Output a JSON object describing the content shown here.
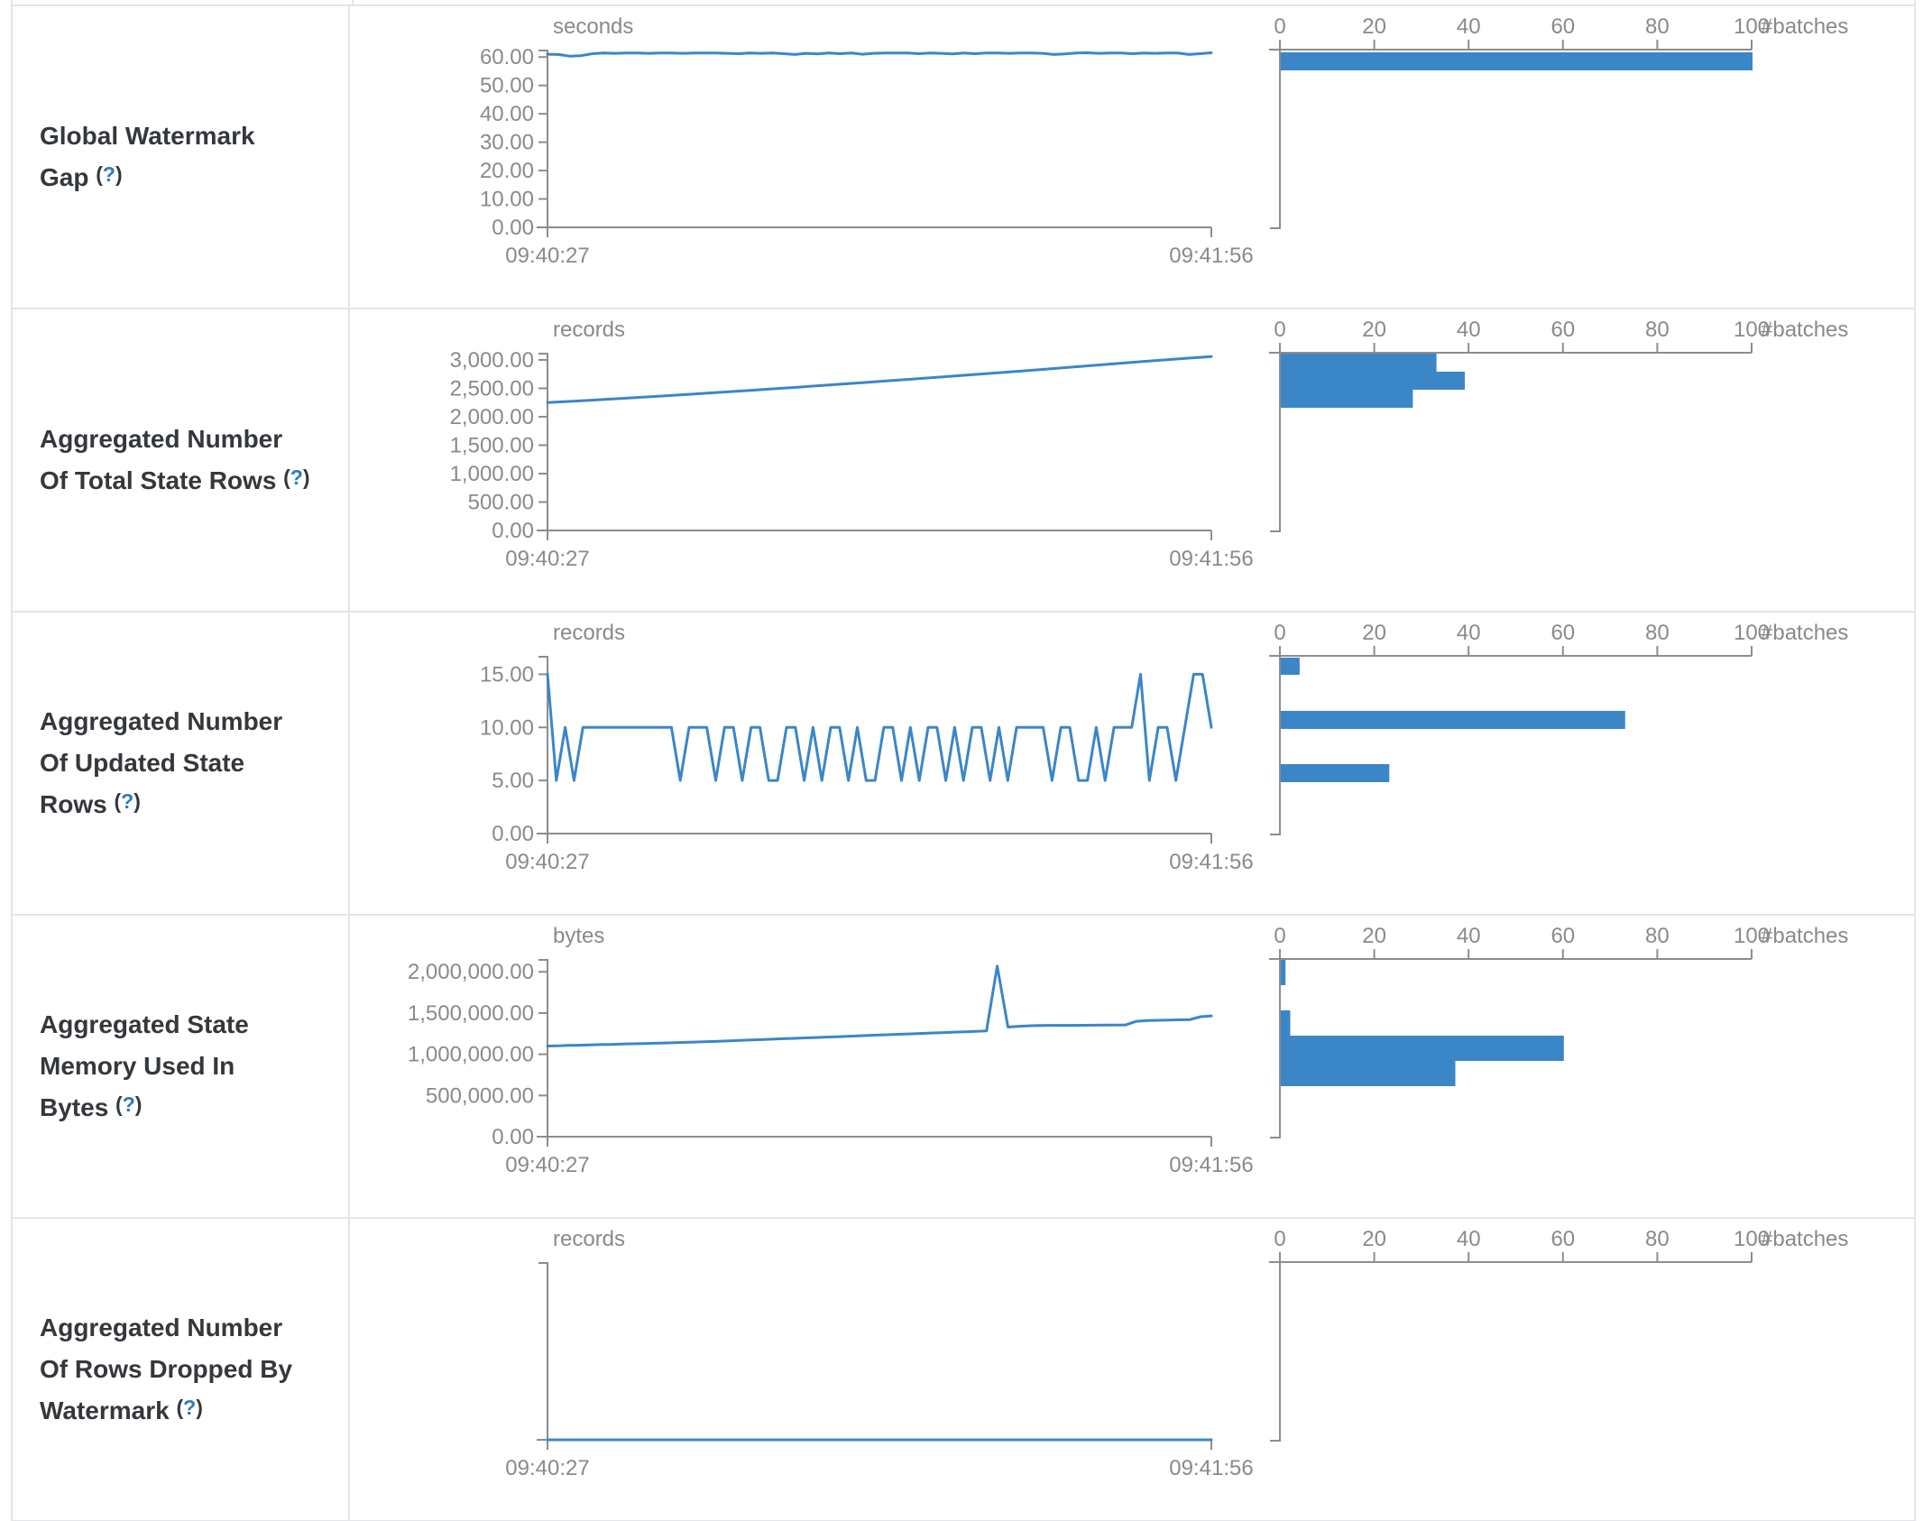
{
  "help_marker": {
    "open": "(",
    "q": "?",
    "close": ")"
  },
  "x_axis": {
    "start": "09:40:27",
    "end": "09:41:56"
  },
  "hist_axis": {
    "tick_labels": [
      "0",
      "20",
      "40",
      "60",
      "80",
      "100"
    ],
    "tick_values": [
      0,
      20,
      40,
      60,
      80,
      100
    ],
    "label": "#batches",
    "max": 100
  },
  "colors": {
    "accent": "#3b86c7",
    "axis_line": "#8d8d8d",
    "axis_text": "#8a8a8a",
    "label_text": "#34383c",
    "border": "#e3e5e8"
  },
  "chart_data": [
    {
      "type": "line+histogram",
      "label": "Global Watermark Gap",
      "unit": "seconds",
      "ymax": 62.3,
      "yticks": [
        {
          "value": 60,
          "label": "60.00"
        },
        {
          "value": 50,
          "label": "50.00"
        },
        {
          "value": 40,
          "label": "40.00"
        },
        {
          "value": 30,
          "label": "30.00"
        },
        {
          "value": 20,
          "label": "20.00"
        },
        {
          "value": 10,
          "label": "10.00"
        },
        {
          "value": 0,
          "label": "0.00"
        }
      ],
      "series": [
        61.0,
        60.9,
        60.3,
        60.5,
        61.2,
        61.4,
        61.3,
        61.4,
        61.4,
        61.3,
        61.4,
        61.4,
        61.3,
        61.4,
        61.4,
        61.4,
        61.3,
        61.2,
        61.4,
        61.3,
        61.4,
        61.2,
        60.9,
        61.3,
        61.1,
        61.4,
        61.2,
        61.4,
        61.0,
        61.3,
        61.4,
        61.4,
        61.4,
        61.2,
        61.4,
        61.3,
        61.1,
        61.4,
        61.2,
        61.4,
        61.4,
        61.3,
        61.4,
        61.4,
        61.3,
        60.9,
        61.1,
        61.4,
        61.5,
        61.3,
        61.4,
        61.4,
        61.2,
        61.4,
        61.3,
        61.4,
        61.4,
        60.9,
        61.2,
        61.5
      ],
      "histogram": {
        "bars": [
          {
            "y": 51,
            "h": 20,
            "count": 100
          }
        ]
      }
    },
    {
      "type": "line+histogram",
      "label": "Aggregated Number Of Total State Rows",
      "unit": "records",
      "ymax": 3110,
      "yticks": [
        {
          "value": 3000,
          "label": "3,000.00"
        },
        {
          "value": 2500,
          "label": "2,500.00"
        },
        {
          "value": 2000,
          "label": "2,000.00"
        },
        {
          "value": 1500,
          "label": "1,500.00"
        },
        {
          "value": 1000,
          "label": "1,000.00"
        },
        {
          "value": 500,
          "label": "500.00"
        },
        {
          "value": 0,
          "label": "0.00"
        }
      ],
      "series": [
        2250,
        2270,
        2293,
        2316,
        2340,
        2365,
        2390,
        2416,
        2442,
        2468,
        2495,
        2522,
        2550,
        2578,
        2606,
        2635,
        2664,
        2693,
        2723,
        2753,
        2783,
        2814,
        2845,
        2876,
        2908,
        2940,
        2972,
        3000,
        3030,
        3058
      ],
      "histogram": {
        "bars": [
          {
            "y": 49,
            "h": 20,
            "count": 33
          },
          {
            "y": 69,
            "h": 20,
            "count": 39
          },
          {
            "y": 89,
            "h": 20,
            "count": 28
          }
        ]
      }
    },
    {
      "type": "line+histogram",
      "label": "Aggregated Number Of Updated State Rows",
      "unit": "records",
      "ymax": 16.65,
      "yticks": [
        {
          "value": 15,
          "label": "15.00"
        },
        {
          "value": 10,
          "label": "10.00"
        },
        {
          "value": 5,
          "label": "5.00"
        },
        {
          "value": 0,
          "label": "0.00"
        }
      ],
      "series": [
        15,
        5,
        10,
        5,
        10,
        10,
        10,
        10,
        10,
        10,
        10,
        10,
        10,
        10,
        10,
        5,
        10,
        10,
        10,
        5,
        10,
        10,
        5,
        10,
        10,
        5,
        5,
        10,
        10,
        5,
        10,
        5,
        10,
        10,
        5,
        10,
        5,
        5,
        10,
        10,
        5,
        10,
        5,
        10,
        10,
        5,
        10,
        5,
        10,
        10,
        5,
        10,
        5,
        10,
        10,
        10,
        10,
        5,
        10,
        10,
        5,
        5,
        10,
        5,
        10,
        10,
        10,
        15,
        5,
        10,
        10,
        5,
        10,
        15,
        15,
        10
      ],
      "histogram": {
        "bars": [
          {
            "y": 50,
            "h": 19,
            "count": 4
          },
          {
            "y": 109,
            "h": 20,
            "count": 73
          },
          {
            "y": 168,
            "h": 20,
            "count": 23
          }
        ]
      }
    },
    {
      "type": "line+histogram",
      "label": "Aggregated State Memory Used In Bytes",
      "unit": "bytes",
      "ymax": 2145000,
      "yticks": [
        {
          "value": 2000000,
          "label": "2,000,000.00"
        },
        {
          "value": 1500000,
          "label": "1,500,000.00"
        },
        {
          "value": 1000000,
          "label": "1,000,000.00"
        },
        {
          "value": 500000,
          "label": "500,000.00"
        },
        {
          "value": 0,
          "label": "0.00"
        }
      ],
      "series": [
        1100000,
        1103000,
        1107000,
        1110000,
        1113000,
        1117000,
        1120000,
        1124000,
        1127000,
        1130000,
        1134000,
        1137000,
        1141000,
        1145000,
        1149000,
        1153000,
        1158000,
        1163000,
        1168000,
        1173000,
        1178000,
        1183000,
        1188000,
        1193000,
        1198000,
        1203000,
        1208000,
        1213000,
        1218000,
        1223000,
        1228000,
        1233000,
        1238000,
        1243000,
        1248000,
        1253000,
        1258000,
        1263000,
        1268000,
        1273000,
        1278000,
        1283000,
        2070000,
        1330000,
        1340000,
        1345000,
        1348000,
        1350000,
        1350000,
        1350000,
        1352000,
        1353000,
        1354000,
        1355000,
        1356000,
        1400000,
        1408000,
        1412000,
        1415000,
        1418000,
        1420000,
        1455000,
        1465000
      ],
      "histogram": {
        "bars": [
          {
            "y": 49,
            "h": 28,
            "count": 1
          },
          {
            "y": 105,
            "h": 28,
            "count": 2
          },
          {
            "y": 133,
            "h": 28,
            "count": 60
          },
          {
            "y": 161,
            "h": 28,
            "count": 37
          }
        ]
      }
    },
    {
      "type": "line+histogram",
      "label": "Aggregated Number Of Rows Dropped By Watermark",
      "unit": "records",
      "ymax": 1,
      "yticks": [],
      "series": [
        0,
        0
      ],
      "histogram": {
        "bars": []
      }
    }
  ]
}
